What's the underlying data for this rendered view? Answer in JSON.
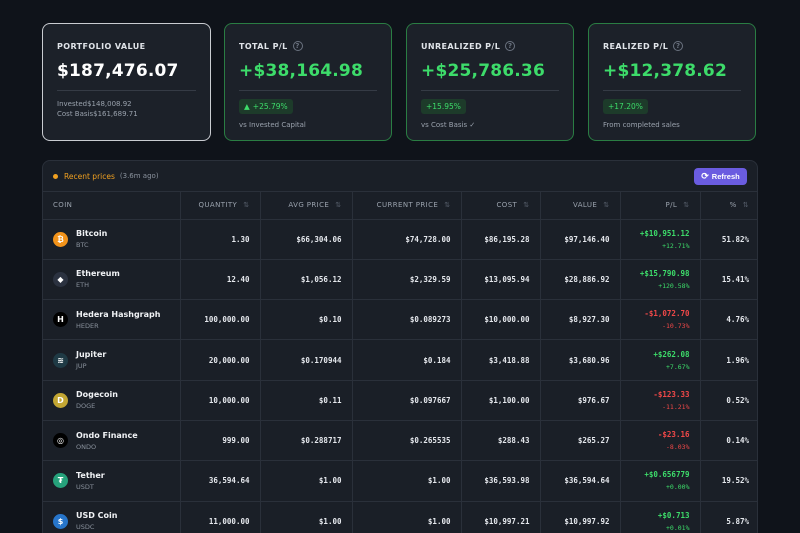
{
  "cards": [
    {
      "title": "PORTFOLIO VALUE",
      "value": "$187,476.07",
      "lines": [
        "Invested$148,008.92",
        "Cost Basis$161,689.71"
      ]
    },
    {
      "title": "TOTAL P/L",
      "value": "+$38,164.98",
      "badge": "+25.79%",
      "badge_arrow": "▲",
      "note": "vs Invested Capital"
    },
    {
      "title": "UNREALIZED P/L",
      "value": "+$25,786.36",
      "badge": "+15.95%",
      "note": "vs Cost Basis ✓"
    },
    {
      "title": "REALIZED P/L",
      "value": "+$12,378.62",
      "badge": "+17.20%",
      "note": "From completed sales"
    }
  ],
  "panel": {
    "recent_label": "Recent prices",
    "recent_ago": "(3.6m ago)",
    "refresh_label": "Refresh"
  },
  "columns": [
    "COIN",
    "QUANTITY",
    "AVG PRICE",
    "CURRENT PRICE",
    "COST",
    "VALUE",
    "P/L",
    "%"
  ],
  "rows": [
    {
      "name": "Bitcoin",
      "symbol": "BTC",
      "qty": "1.30",
      "avg": "$66,304.06",
      "current": "$74,728.00",
      "cost": "$86,195.28",
      "value": "$97,146.40",
      "pl": "+$10,951.12",
      "pl_pct": "+12.71%",
      "share": "51.82%",
      "dir": "pos",
      "icon_color": "#f2931a",
      "icon_glyph": "₿"
    },
    {
      "name": "Ethereum",
      "symbol": "ETH",
      "qty": "12.40",
      "avg": "$1,056.12",
      "current": "$2,329.59",
      "cost": "$13,095.94",
      "value": "$28,886.92",
      "pl": "+$15,790.98",
      "pl_pct": "+120.58%",
      "share": "15.41%",
      "dir": "pos",
      "icon_color": "#2b3240",
      "icon_glyph": "◆"
    },
    {
      "name": "Hedera Hashgraph",
      "symbol": "HEDER",
      "qty": "100,000.00",
      "avg": "$0.10",
      "current": "$0.089273",
      "cost": "$10,000.00",
      "value": "$8,927.30",
      "pl": "-$1,072.70",
      "pl_pct": "-10.73%",
      "share": "4.76%",
      "dir": "neg",
      "icon_color": "#000000",
      "icon_glyph": "H"
    },
    {
      "name": "Jupiter",
      "symbol": "JUP",
      "qty": "20,000.00",
      "avg": "$0.170944",
      "current": "$0.184",
      "cost": "$3,418.88",
      "value": "$3,680.96",
      "pl": "+$262.08",
      "pl_pct": "+7.67%",
      "share": "1.96%",
      "dir": "pos",
      "icon_color": "#1f3a45",
      "icon_glyph": "≋"
    },
    {
      "name": "Dogecoin",
      "symbol": "DOGE",
      "qty": "10,000.00",
      "avg": "$0.11",
      "current": "$0.097667",
      "cost": "$1,100.00",
      "value": "$976.67",
      "pl": "-$123.33",
      "pl_pct": "-11.21%",
      "share": "0.52%",
      "dir": "neg",
      "icon_color": "#c2a633",
      "icon_glyph": "D"
    },
    {
      "name": "Ondo Finance",
      "symbol": "ONDO",
      "qty": "999.00",
      "avg": "$0.288717",
      "current": "$0.265535",
      "cost": "$288.43",
      "value": "$265.27",
      "pl": "-$23.16",
      "pl_pct": "-8.03%",
      "share": "0.14%",
      "dir": "neg",
      "icon_color": "#000000",
      "icon_glyph": "◎"
    },
    {
      "name": "Tether",
      "symbol": "USDT",
      "qty": "36,594.64",
      "avg": "$1.00",
      "current": "$1.00",
      "cost": "$36,593.98",
      "value": "$36,594.64",
      "pl": "+$0.656779",
      "pl_pct": "+0.00%",
      "share": "19.52%",
      "dir": "pos",
      "icon_color": "#26a17b",
      "icon_glyph": "₮"
    },
    {
      "name": "USD Coin",
      "symbol": "USDC",
      "qty": "11,000.00",
      "avg": "$1.00",
      "current": "$1.00",
      "cost": "$10,997.21",
      "value": "$10,997.92",
      "pl": "+$0.713",
      "pl_pct": "+0.01%",
      "share": "5.87%",
      "dir": "pos",
      "icon_color": "#2775ca",
      "icon_glyph": "$"
    }
  ]
}
